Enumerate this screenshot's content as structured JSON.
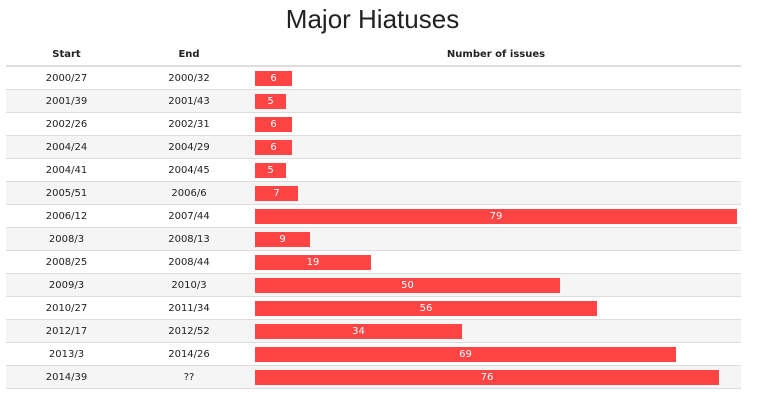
{
  "title": "Major Hiatuses",
  "columns": {
    "start": "Start",
    "end": "End",
    "issues": "Number of issues"
  },
  "colors": {
    "bar": "#ff4444",
    "bar_text": "#ffffff"
  },
  "chart_data": {
    "type": "bar",
    "title": "Major Hiatuses",
    "xlabel": "Number of issues",
    "ylabel": "",
    "xlim": [
      0,
      79
    ],
    "categories": [
      "2000/27",
      "2001/39",
      "2002/26",
      "2004/24",
      "2004/41",
      "2005/51",
      "2006/12",
      "2008/3",
      "2008/25",
      "2009/3",
      "2010/27",
      "2012/17",
      "2013/3",
      "2014/39"
    ],
    "rows": [
      {
        "start": "2000/27",
        "end": "2000/32",
        "issues": 6
      },
      {
        "start": "2001/39",
        "end": "2001/43",
        "issues": 5
      },
      {
        "start": "2002/26",
        "end": "2002/31",
        "issues": 6
      },
      {
        "start": "2004/24",
        "end": "2004/29",
        "issues": 6
      },
      {
        "start": "2004/41",
        "end": "2004/45",
        "issues": 5
      },
      {
        "start": "2005/51",
        "end": "2006/6",
        "issues": 7
      },
      {
        "start": "2006/12",
        "end": "2007/44",
        "issues": 79
      },
      {
        "start": "2008/3",
        "end": "2008/13",
        "issues": 9
      },
      {
        "start": "2008/25",
        "end": "2008/44",
        "issues": 19
      },
      {
        "start": "2009/3",
        "end": "2010/3",
        "issues": 50
      },
      {
        "start": "2010/27",
        "end": "2011/34",
        "issues": 56
      },
      {
        "start": "2012/17",
        "end": "2012/52",
        "issues": 34
      },
      {
        "start": "2013/3",
        "end": "2014/26",
        "issues": 69
      },
      {
        "start": "2014/39",
        "end": "??",
        "issues": 76
      }
    ]
  }
}
